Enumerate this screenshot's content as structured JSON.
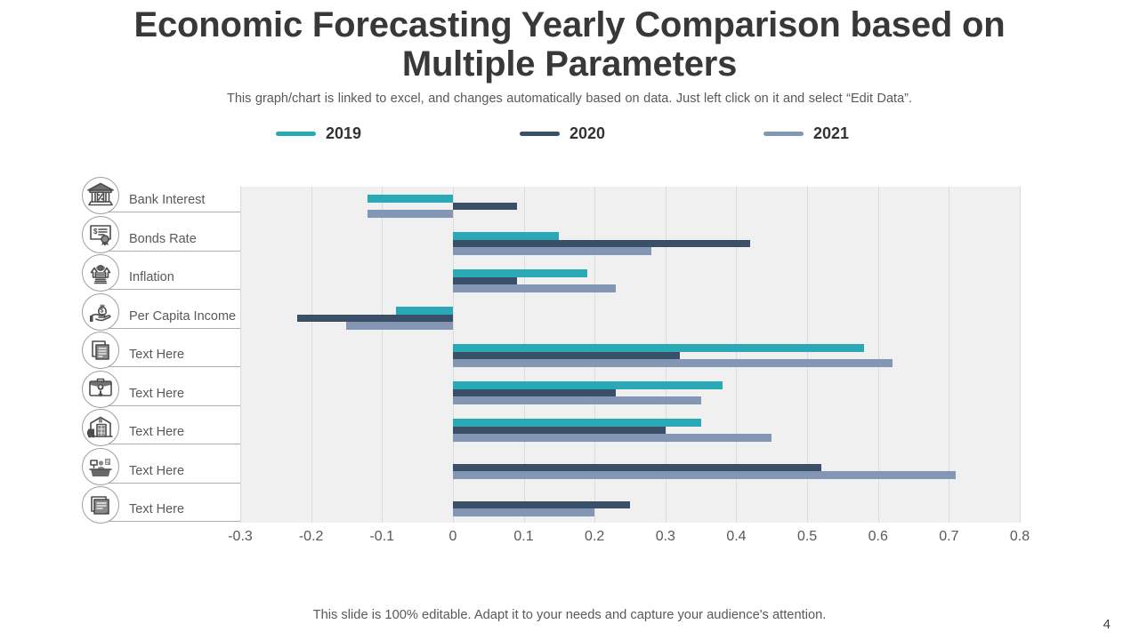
{
  "title_lines": [
    "Economic Forecasting Yearly Comparison based on",
    "Multiple Parameters"
  ],
  "subtitle": "This graph/chart is linked to excel, and changes automatically based on data. Just left click on it and select “Edit Data”.",
  "footer": "This slide is 100% editable. Adapt it to your needs and capture your audience's attention.",
  "page_number": "4",
  "colors": {
    "series_2019": "#28a9b5",
    "series_2020": "#3a4f68",
    "series_2021": "#8396b4",
    "plot_background": "#f0f0f1",
    "gridline": "#dbdbdd"
  },
  "chart_data": {
    "type": "bar",
    "orientation": "horizontal",
    "title": "Economic Forecasting Yearly Comparison based on Multiple Parameters",
    "categories": [
      "Bank Interest",
      "Bonds Rate",
      "Inflation",
      "Per Capita Income",
      "Text Here",
      "Text Here",
      "Text Here",
      "Text Here",
      "Text Here"
    ],
    "category_icons": [
      "bank-building-icon",
      "bond-certificate-icon",
      "inflation-arrows-icon",
      "per-capita-income-icon",
      "documents-icon",
      "briefcase-down-arrow-icon",
      "warehouse-truck-icon",
      "cashier-desk-icon",
      "notes-icon"
    ],
    "series": [
      {
        "name": "2019",
        "color": "#28a9b5",
        "values": [
          -0.12,
          0.15,
          0.19,
          -0.08,
          0.58,
          0.38,
          0.35,
          0,
          0
        ]
      },
      {
        "name": "2020",
        "color": "#3a4f68",
        "values": [
          0.09,
          0.42,
          0.09,
          -0.22,
          0.32,
          0.23,
          0.3,
          0.52,
          0.25
        ]
      },
      {
        "name": "2021",
        "color": "#8396b4",
        "values": [
          -0.12,
          0.28,
          0.23,
          -0.15,
          0.62,
          0.35,
          0.45,
          0.71,
          0.2
        ]
      }
    ],
    "xlim": [
      -0.3,
      0.8
    ],
    "xtick_labels": [
      "-0.3",
      "-0.2",
      "-0.1",
      "0",
      "0.1",
      "0.2",
      "0.3",
      "0.4",
      "0.5",
      "0.6",
      "0.7",
      "0.8"
    ],
    "grid": true,
    "legend_position": "top"
  }
}
